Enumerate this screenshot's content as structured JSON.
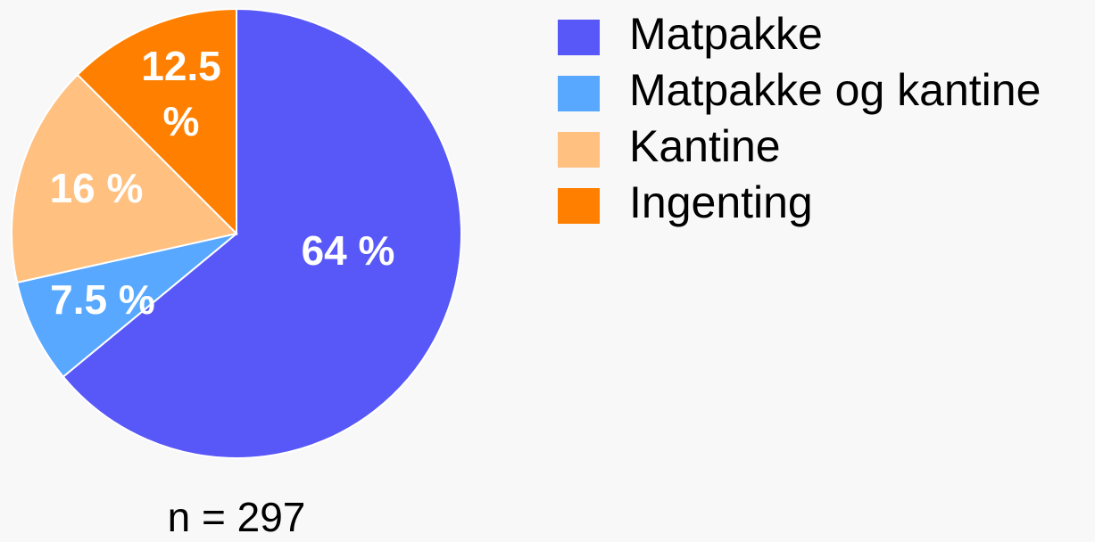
{
  "chart_data": {
    "type": "pie",
    "categories": [
      "Matpakke",
      "Matpakke og kantine",
      "Kantine",
      "Ingenting"
    ],
    "values": [
      64,
      7.5,
      16,
      12.5
    ],
    "value_labels": [
      "64 %",
      "7.5 %",
      "16 %",
      "12.5 %"
    ],
    "colors": [
      "#5858f8",
      "#58a8ff",
      "#ffc080",
      "#ff8000"
    ],
    "annotation": "n = 297"
  }
}
